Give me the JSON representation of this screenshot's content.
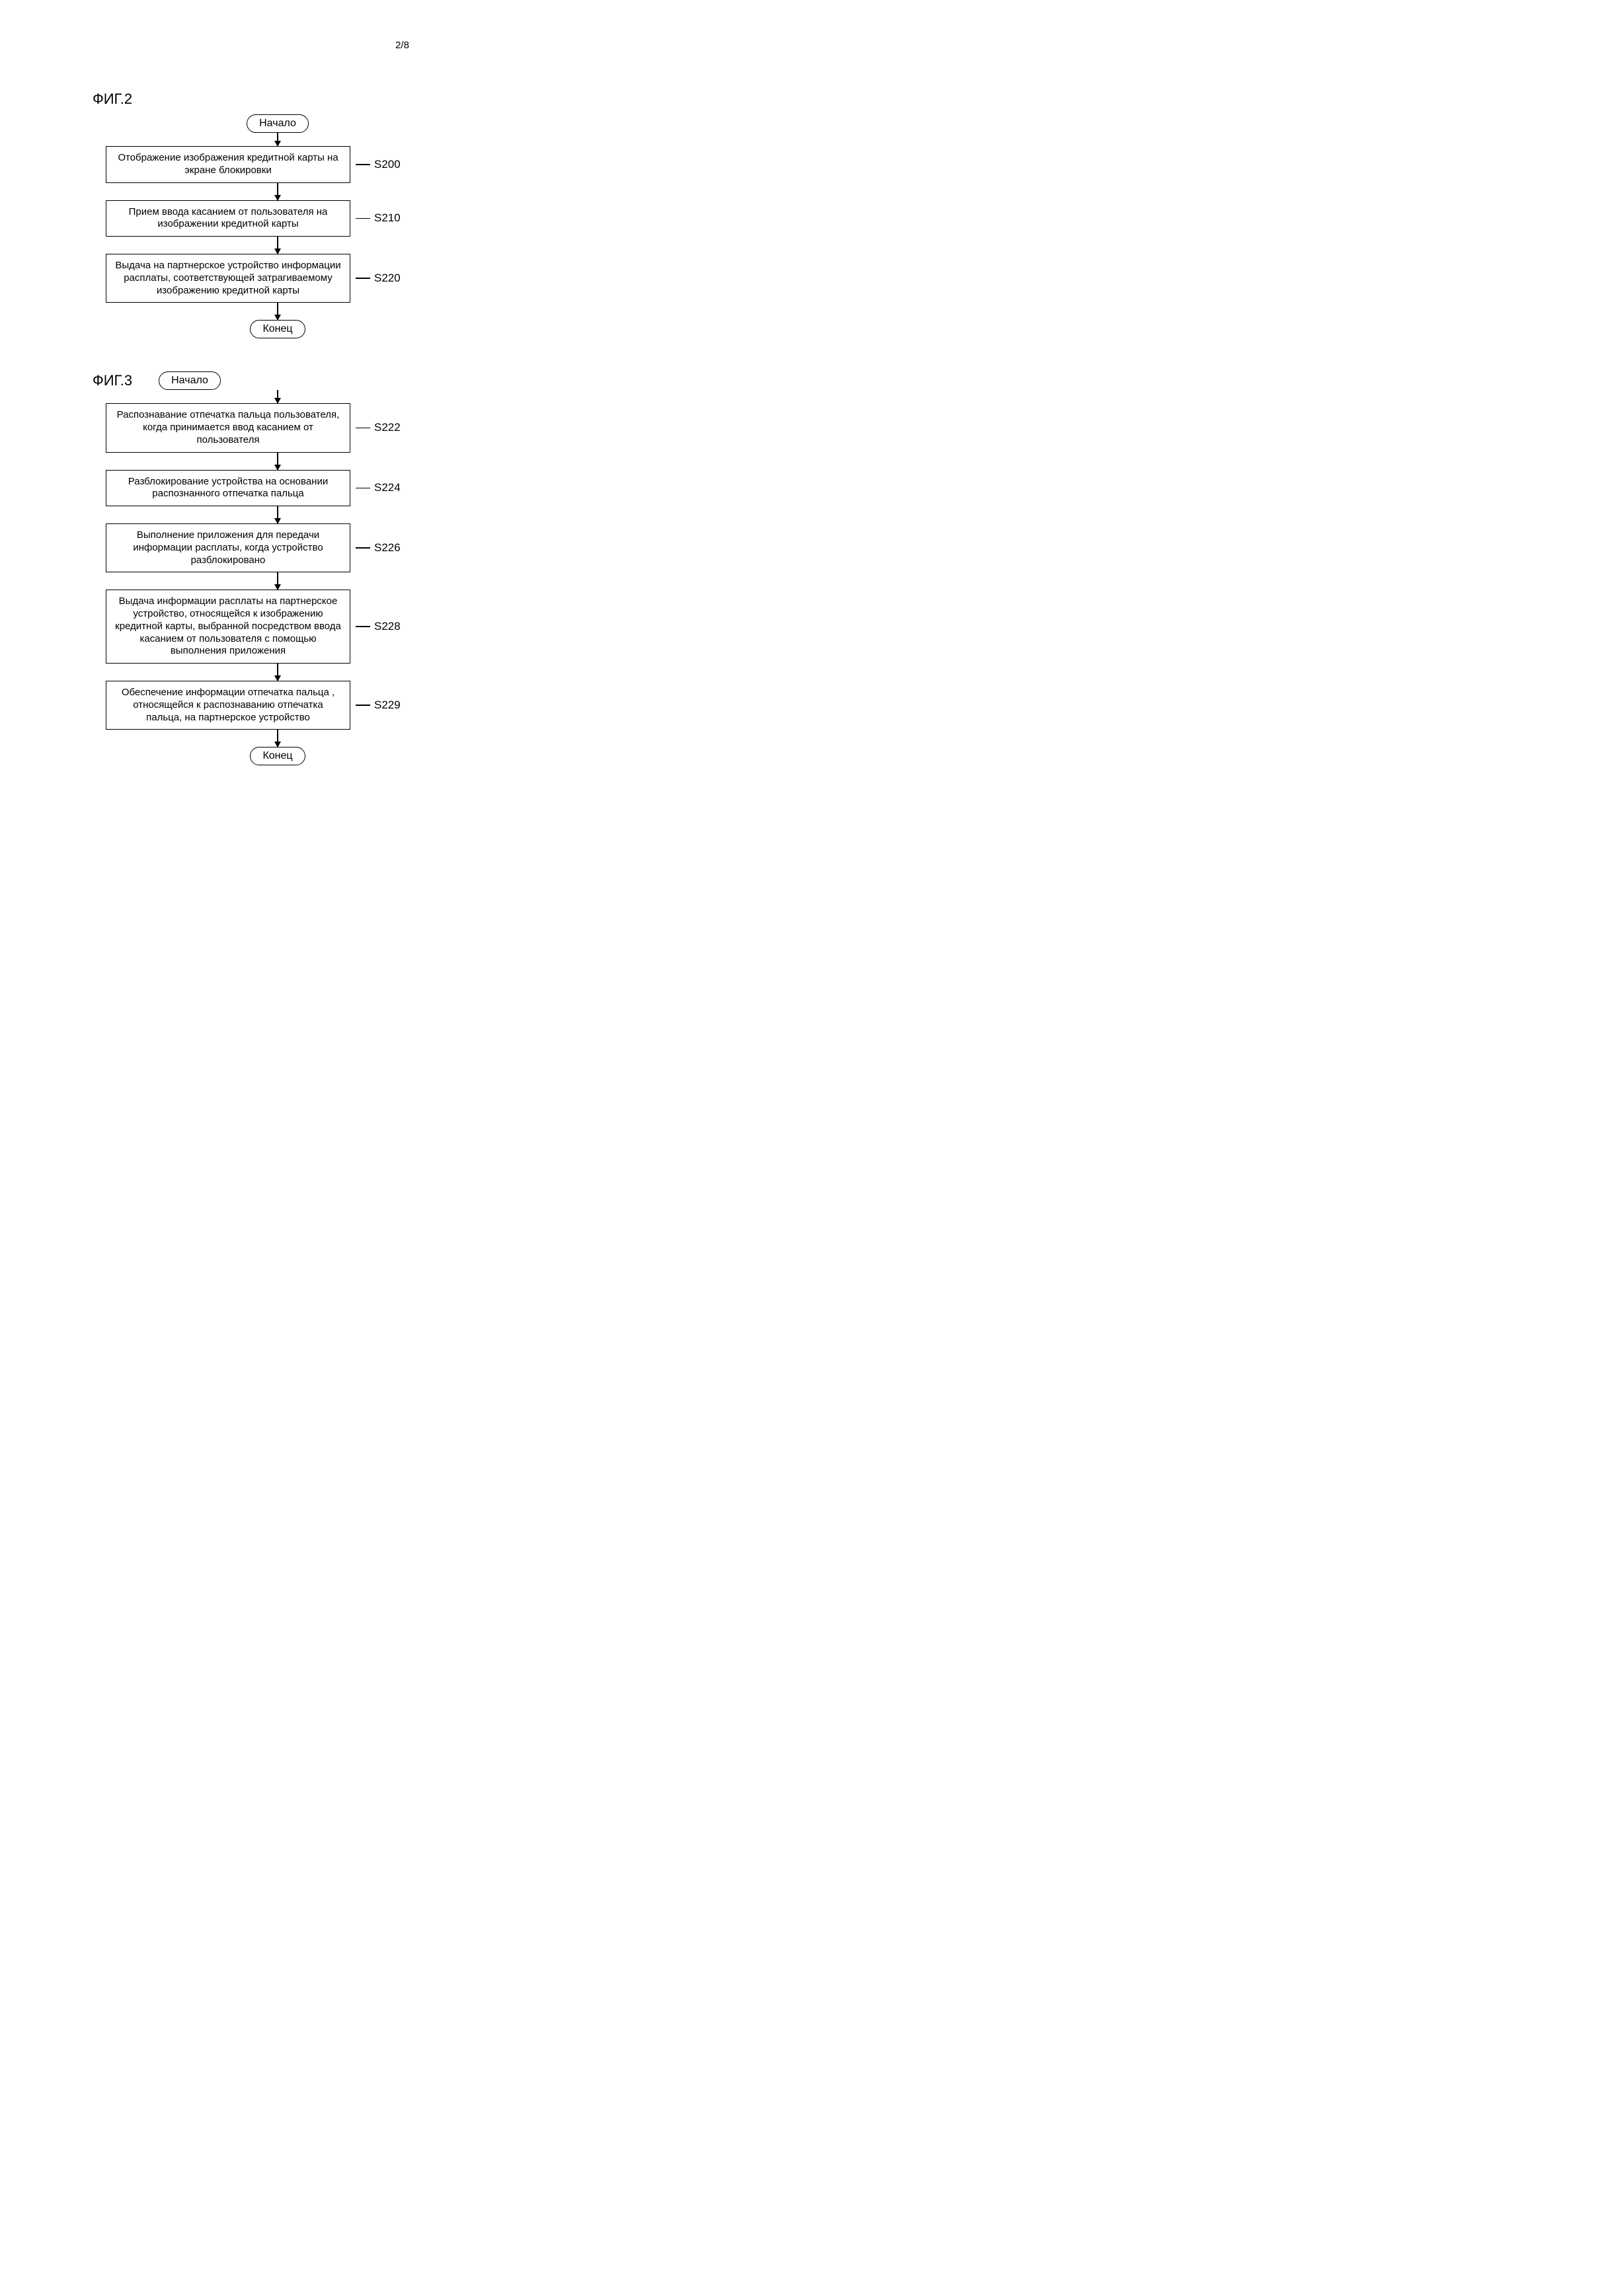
{
  "page_number": "2/8",
  "fig2": {
    "title": "ФИГ.2",
    "start": "Начало",
    "end": "Конец",
    "steps": [
      {
        "text": "Отображение изображения кредитной карты на экране блокировки",
        "label": "S200"
      },
      {
        "text": "Прием ввода касанием от пользователя на изображении кредитной карты",
        "label": "S210"
      },
      {
        "text": "Выдача на партнерское устройство информации расплаты, соответствующей затрагиваемому изображению кредитной карты",
        "label": "S220"
      }
    ]
  },
  "fig3": {
    "title": "ФИГ.3",
    "start": "Начало",
    "end": "Конец",
    "steps": [
      {
        "text": "Распознавание отпечатка пальца пользователя, когда принимается ввод касанием от пользователя",
        "label": "S222"
      },
      {
        "text": "Разблокирование устройства на основании распознанного отпечатка пальца",
        "label": "S224"
      },
      {
        "text": "Выполнение приложения для передачи информации расплаты, когда устройство разблокировано",
        "label": "S226"
      },
      {
        "text": "Выдача информации расплаты на партнерское устройство, относящейся к изображению кредитной карты, выбранной посредством ввода касанием от пользователя с помощью выполнения приложения",
        "label": "S228"
      },
      {
        "text": "Обеспечение информации отпечатка пальца , относящейся к распознаванию отпечатка пальца, на партнерское устройство",
        "label": "S229"
      }
    ]
  },
  "style": {
    "border_color": "#000000",
    "background": "#ffffff",
    "font_family": "Arial, sans-serif",
    "title_fontsize": 22,
    "body_fontsize": 15,
    "label_fontsize": 17,
    "process_width": 370,
    "terminator_radius": 20,
    "arrow_head": 9
  }
}
